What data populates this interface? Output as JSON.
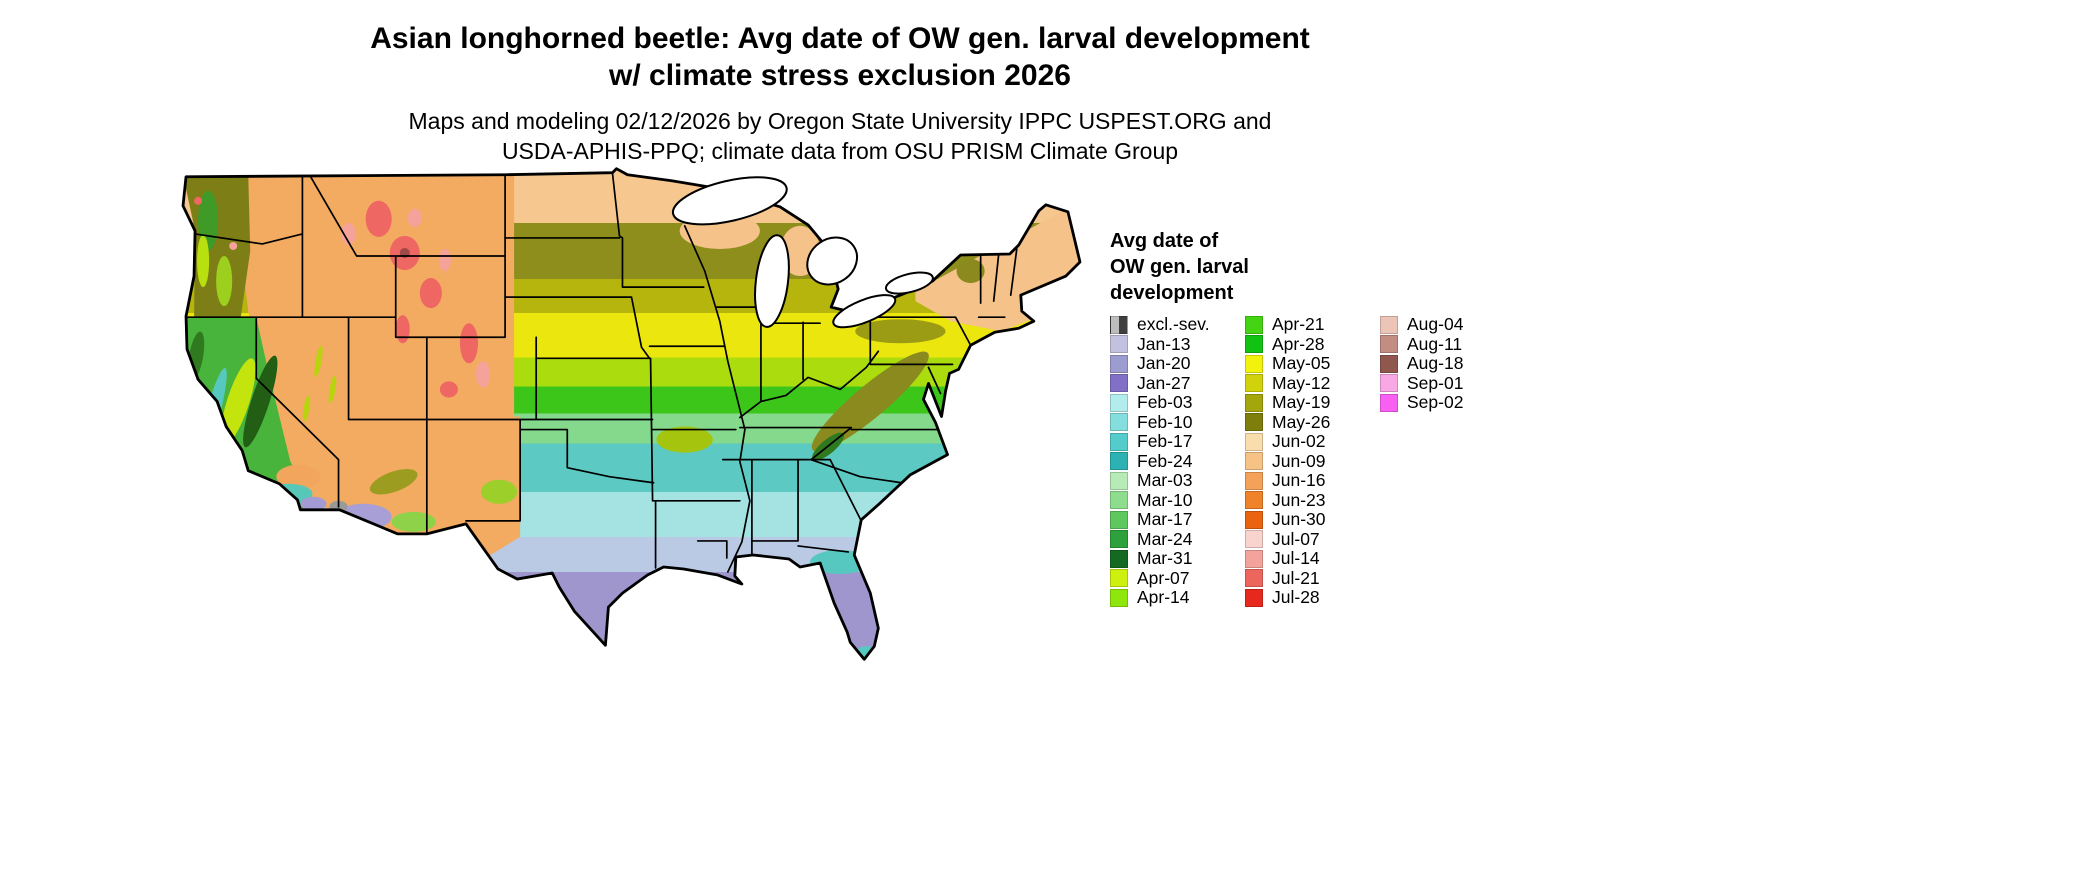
{
  "title": {
    "line1": "Asian longhorned beetle: Avg date of OW gen. larval development",
    "line2": "w/ climate stress exclusion 2026"
  },
  "subtitle": {
    "line1": "Maps and modeling 02/12/2026 by Oregon State University IPPC USPEST.ORG and",
    "line2": "USDA-APHIS-PPQ; climate data from OSU PRISM Climate Group"
  },
  "legend": {
    "title_lines": [
      "Avg date of",
      "OW gen. larval",
      "development"
    ],
    "columns": [
      {
        "entries": [
          {
            "label": "excl.-sev.",
            "color": "#3f3f3f",
            "color2": "#bdbdbd"
          },
          {
            "label": "Jan-13",
            "color": "#c2c2e0"
          },
          {
            "label": "Jan-20",
            "color": "#9c9cd0"
          },
          {
            "label": "Jan-27",
            "color": "#8270c6"
          },
          {
            "label": "Feb-03",
            "color": "#b2ecec"
          },
          {
            "label": "Feb-10",
            "color": "#84dede"
          },
          {
            "label": "Feb-17",
            "color": "#55cccc"
          },
          {
            "label": "Feb-24",
            "color": "#2cb2b2"
          },
          {
            "label": "Mar-03",
            "color": "#b6eab6"
          },
          {
            "label": "Mar-10",
            "color": "#8edc8e"
          },
          {
            "label": "Mar-17",
            "color": "#5ec75e"
          },
          {
            "label": "Mar-24",
            "color": "#2da23c"
          },
          {
            "label": "Mar-31",
            "color": "#156a22"
          },
          {
            "label": "Apr-07",
            "color": "#cdf00f"
          },
          {
            "label": "Apr-14",
            "color": "#8fe60a"
          }
        ]
      },
      {
        "entries": [
          {
            "label": "Apr-21",
            "color": "#44d414"
          },
          {
            "label": "Apr-28",
            "color": "#12c212"
          },
          {
            "label": "May-05",
            "color": "#f2f20c"
          },
          {
            "label": "May-12",
            "color": "#d2d20c"
          },
          {
            "label": "May-19",
            "color": "#a5a50c"
          },
          {
            "label": "May-26",
            "color": "#7e7e0c"
          },
          {
            "label": "Jun-02",
            "color": "#f9ddad"
          },
          {
            "label": "Jun-09",
            "color": "#f7c285"
          },
          {
            "label": "Jun-16",
            "color": "#f4a259"
          },
          {
            "label": "Jun-23",
            "color": "#f0832a"
          },
          {
            "label": "Jun-30",
            "color": "#ea6310"
          },
          {
            "label": "Jul-07",
            "color": "#f9d3cd"
          },
          {
            "label": "Jul-14",
            "color": "#f3a39c"
          },
          {
            "label": "Jul-21",
            "color": "#ed665e"
          },
          {
            "label": "Jul-28",
            "color": "#e7281c"
          }
        ]
      },
      {
        "entries": [
          {
            "label": "Aug-04",
            "color": "#ecc5b8"
          },
          {
            "label": "Aug-11",
            "color": "#c28d82"
          },
          {
            "label": "Aug-18",
            "color": "#8f574d"
          },
          {
            "label": "Sep-01",
            "color": "#f9a8e6"
          },
          {
            "label": "Sep-02",
            "color": "#f860f2"
          }
        ]
      }
    ]
  }
}
